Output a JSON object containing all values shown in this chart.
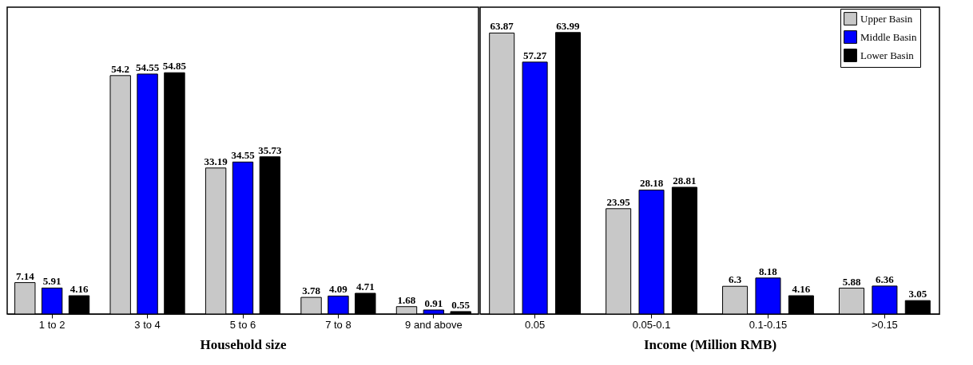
{
  "chart_data": [
    {
      "type": "bar",
      "xlabel": "Household size",
      "categories": [
        "1 to 2",
        "3 to 4",
        "5 to 6",
        "7 to 8",
        "9 and above"
      ],
      "data_labels": true,
      "legend": "top right",
      "series": [
        {
          "name": "Upper Basin",
          "color": "#c8c8c8",
          "values": [
            7.14,
            54.2,
            33.19,
            3.78,
            1.68
          ]
        },
        {
          "name": "Middle Basin",
          "color": "#0000ff",
          "values": [
            5.91,
            54.55,
            34.55,
            4.09,
            0.91
          ]
        },
        {
          "name": "Lower Basin",
          "color": "#000000",
          "values": [
            4.16,
            54.85,
            35.73,
            4.71,
            0.55
          ]
        }
      ]
    },
    {
      "type": "bar",
      "xlabel": "Income (Million RMB)",
      "categories": [
        "0.05",
        "0.05-0.1",
        "0.1-0.15",
        ">0.15"
      ],
      "data_labels": true,
      "legend": "top right",
      "series": [
        {
          "name": "Upper Basin",
          "color": "#c8c8c8",
          "values": [
            63.87,
            23.95,
            6.3,
            5.88
          ]
        },
        {
          "name": "Middle Basin",
          "color": "#0000ff",
          "values": [
            57.27,
            28.18,
            8.18,
            6.36
          ]
        },
        {
          "name": "Lower Basin",
          "color": "#000000",
          "values": [
            63.99,
            28.81,
            4.16,
            3.05
          ]
        }
      ]
    }
  ]
}
